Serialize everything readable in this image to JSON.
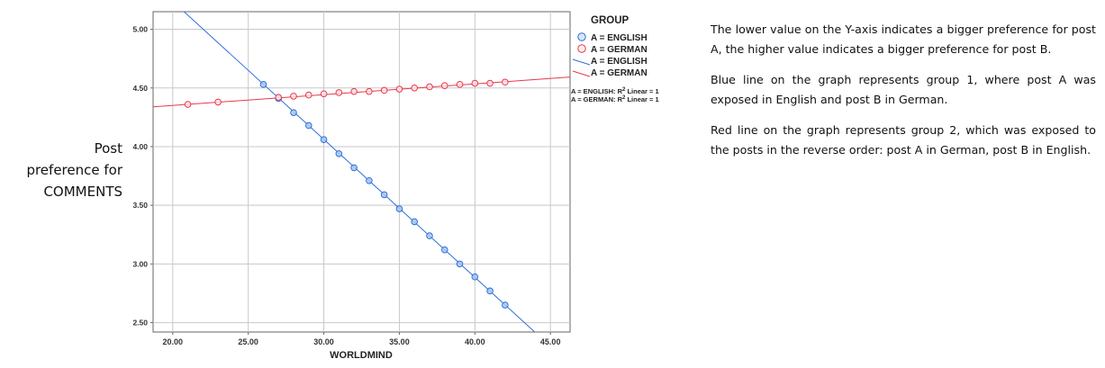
{
  "side_label": {
    "lines": [
      "Post",
      "preference for",
      "COMMENTS"
    ]
  },
  "notes": [
    "The lower value on the Y-axis indicates a bigger preference for post A, the higher value indicates a bigger preference for post B.",
    "Blue line on the graph represents group 1, where post A was  exposed in English and post B in German.",
    "Red line on the graph represents group 2, which was exposed to the posts in the reverse order: post A in German, post B in English."
  ],
  "chart_data": {
    "type": "scatter",
    "title": "",
    "xlabel": "WORLDMIND",
    "ylabel": "",
    "xlim": [
      18.7,
      46.3
    ],
    "ylim": [
      2.42,
      5.15
    ],
    "x_ticks": [
      "20.00",
      "25.00",
      "30.00",
      "35.00",
      "40.00",
      "45.00"
    ],
    "y_ticks": [
      "2.50",
      "3.00",
      "3.50",
      "4.00",
      "4.50",
      "5.00"
    ],
    "grid": true,
    "legend": {
      "title": "GROUP",
      "position": "right",
      "entries": [
        {
          "marker": "circle",
          "label": "A = ENGLISH"
        },
        {
          "marker": "circle",
          "label": "A = GERMAN"
        },
        {
          "marker": "line",
          "label": "A = ENGLISH"
        },
        {
          "marker": "line",
          "label": "A = GERMAN"
        }
      ],
      "fit_notes": [
        {
          "prefix": "A = ENGLISH: R",
          "sup": "2",
          "suffix": " Linear = 1"
        },
        {
          "prefix": "A = GERMAN: R",
          "sup": "2",
          "suffix": " Linear = 1"
        }
      ]
    },
    "series": [
      {
        "name": "A = ENGLISH",
        "color": "#2f6fdc",
        "marker_fill": "#a9c8ee",
        "x": [
          26,
          27,
          28,
          29,
          30,
          31,
          32,
          33,
          34,
          35,
          36,
          37,
          38,
          39,
          40,
          41,
          42
        ],
        "y": [
          4.53,
          4.41,
          4.29,
          4.18,
          4.06,
          3.94,
          3.82,
          3.71,
          3.59,
          3.47,
          3.36,
          3.24,
          3.12,
          3.0,
          2.89,
          2.77,
          2.65
        ],
        "fit": {
          "slope": -0.1176,
          "intercept": 7.59
        }
      },
      {
        "name": "A = GERMAN",
        "color": "#e8394a",
        "marker_fill": "#ffe4e8",
        "x": [
          21,
          23,
          27,
          28,
          29,
          30,
          31,
          32,
          33,
          34,
          35,
          36,
          37,
          38,
          39,
          40,
          41,
          42
        ],
        "y": [
          4.36,
          4.38,
          4.42,
          4.43,
          4.44,
          4.45,
          4.46,
          4.47,
          4.47,
          4.48,
          4.49,
          4.5,
          4.51,
          4.52,
          4.53,
          4.54,
          4.54,
          4.55
        ],
        "fit": {
          "slope": 0.0092,
          "intercept": 4.167
        }
      }
    ]
  }
}
